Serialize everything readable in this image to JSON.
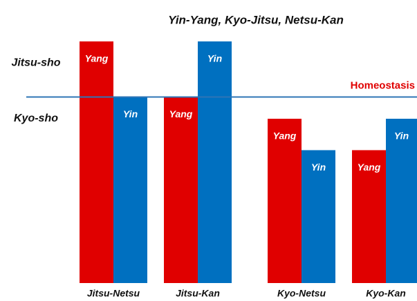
{
  "chart_data": {
    "type": "bar",
    "title": "Yin-Yang, Kyo-Jitsu, Netsu-Kan",
    "categories": [
      "Jitsu-Netsu",
      "Jitsu-Kan",
      "Kyo-Netsu",
      "Kyo-Kan"
    ],
    "series": [
      {
        "name": "Yang",
        "color": "#e00000",
        "values": [
          100,
          77,
          68,
          55
        ]
      },
      {
        "name": "Yin",
        "color": "#0070c0",
        "values": [
          77,
          100,
          55,
          68
        ]
      }
    ],
    "ylim": [
      0,
      100
    ],
    "annotations": [
      {
        "text": "Jitsu-sho",
        "value": 91
      },
      {
        "text": "Kyo-sho",
        "value": 68
      }
    ],
    "reference_line": {
      "label": "Homeostasis",
      "value": 77,
      "color": "#2e75b6"
    }
  }
}
